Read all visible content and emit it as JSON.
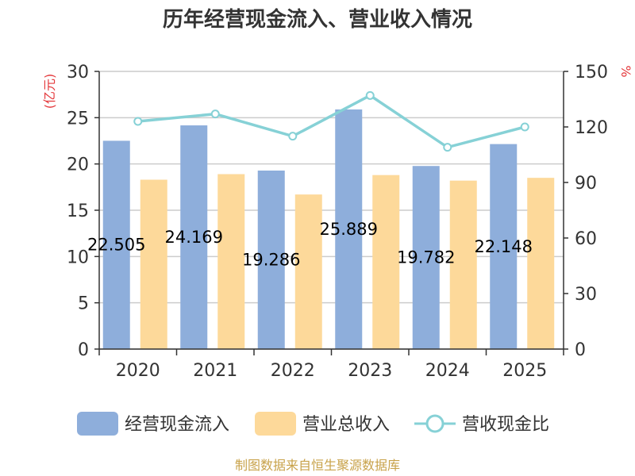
{
  "chart_data": {
    "type": "bar",
    "title": "历年经营现金流入、营业收入情况",
    "left_unit": "(亿元)",
    "right_unit": "%",
    "categories": [
      "2020",
      "2021",
      "2022",
      "2023",
      "2024",
      "2025"
    ],
    "left_ylim": [
      0,
      30
    ],
    "left_ticks": [
      "0",
      "5",
      "10",
      "15",
      "20",
      "25",
      "30"
    ],
    "right_ylim": [
      0,
      150
    ],
    "right_ticks": [
      "0",
      "30",
      "60",
      "90",
      "120",
      "150"
    ],
    "grid": true,
    "legend_position": "bottom",
    "series": [
      {
        "name": "经营现金流入",
        "type": "bar",
        "axis": "left",
        "color": "#8eaedb",
        "values": [
          22.505,
          24.169,
          19.286,
          25.889,
          19.782,
          22.148
        ],
        "labels": [
          "22.505",
          "24.169",
          "19.286",
          "25.889",
          "19.782",
          "22.148"
        ]
      },
      {
        "name": "营业总收入",
        "type": "bar",
        "axis": "left",
        "color": "#fdd99a",
        "values": [
          18.3,
          18.9,
          16.7,
          18.8,
          18.2,
          18.5
        ]
      },
      {
        "name": "营收现金比",
        "type": "line",
        "axis": "right",
        "color": "#86d1d6",
        "values": [
          123,
          127,
          115,
          137,
          109,
          120
        ]
      }
    ],
    "source": "制图数据来自恒生聚源数据库"
  }
}
